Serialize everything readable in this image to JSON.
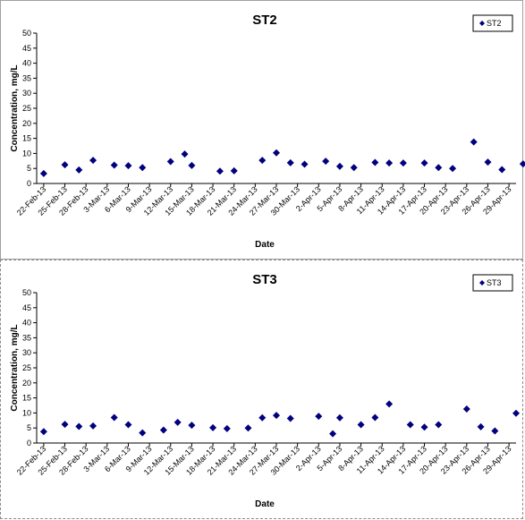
{
  "chart_data": [
    {
      "type": "scatter",
      "title": "ST2",
      "xlabel": "Date",
      "ylabel": "Concentration, mg/L",
      "ylim": [
        0,
        50
      ],
      "yticks": [
        0,
        5,
        10,
        15,
        20,
        25,
        30,
        35,
        40,
        45,
        50
      ],
      "x_tick_labels": [
        "22-Feb-13",
        "25-Feb-13",
        "28-Feb-13",
        "3-Mar-13",
        "6-Mar-13",
        "9-Mar-13",
        "12-Mar-13",
        "15-Mar-13",
        "18-Mar-13",
        "21-Mar-13",
        "24-Mar-13",
        "27-Mar-13",
        "30-Mar-13",
        "2-Apr-13",
        "5-Apr-13",
        "8-Apr-13",
        "11-Apr-13",
        "14-Apr-13",
        "17-Apr-13",
        "20-Apr-13",
        "23-Apr-13",
        "26-Apr-13",
        "29-Apr-13"
      ],
      "xlim": [
        "2013-02-21",
        "2013-04-30"
      ],
      "grid": false,
      "legend": "top-right",
      "marker_color": "#00007f",
      "series": [
        {
          "name": "ST2",
          "points": [
            {
              "x": "2013-02-22",
              "y": 3.3
            },
            {
              "x": "2013-02-25",
              "y": 6.2
            },
            {
              "x": "2013-02-27",
              "y": 4.5
            },
            {
              "x": "2013-03-01",
              "y": 7.7
            },
            {
              "x": "2013-03-04",
              "y": 6.1
            },
            {
              "x": "2013-03-06",
              "y": 5.9
            },
            {
              "x": "2013-03-08",
              "y": 5.3
            },
            {
              "x": "2013-03-12",
              "y": 7.3
            },
            {
              "x": "2013-03-14",
              "y": 9.8
            },
            {
              "x": "2013-03-15",
              "y": 6.0
            },
            {
              "x": "2013-03-19",
              "y": 4.1
            },
            {
              "x": "2013-03-21",
              "y": 4.2
            },
            {
              "x": "2013-03-25",
              "y": 7.7
            },
            {
              "x": "2013-03-27",
              "y": 10.2
            },
            {
              "x": "2013-03-29",
              "y": 6.9
            },
            {
              "x": "2013-03-31",
              "y": 6.4
            },
            {
              "x": "2013-04-03",
              "y": 7.4
            },
            {
              "x": "2013-04-05",
              "y": 5.7
            },
            {
              "x": "2013-04-07",
              "y": 5.3
            },
            {
              "x": "2013-04-10",
              "y": 7.0
            },
            {
              "x": "2013-04-12",
              "y": 6.8
            },
            {
              "x": "2013-04-14",
              "y": 6.8
            },
            {
              "x": "2013-04-17",
              "y": 6.8
            },
            {
              "x": "2013-04-19",
              "y": 5.3
            },
            {
              "x": "2013-04-21",
              "y": 5.0
            },
            {
              "x": "2013-04-24",
              "y": 13.8
            },
            {
              "x": "2013-04-26",
              "y": 7.1
            },
            {
              "x": "2013-04-28",
              "y": 4.6
            },
            {
              "x": "2013-05-01",
              "y": 6.5
            }
          ]
        }
      ]
    },
    {
      "type": "scatter",
      "title": "ST3",
      "xlabel": "Date",
      "ylabel": "Concentration, mg/L",
      "ylim": [
        0,
        50
      ],
      "yticks": [
        0,
        5,
        10,
        15,
        20,
        25,
        30,
        35,
        40,
        45,
        50
      ],
      "x_tick_labels": [
        "22-Feb-13",
        "25-Feb-13",
        "28-Feb-13",
        "3-Mar-13",
        "6-Mar-13",
        "9-Mar-13",
        "12-Mar-13",
        "15-Mar-13",
        "18-Mar-13",
        "21-Mar-13",
        "24-Mar-13",
        "27-Mar-13",
        "30-Mar-13",
        "2-Apr-13",
        "5-Apr-13",
        "8-Apr-13",
        "11-Apr-13",
        "14-Apr-13",
        "17-Apr-13",
        "20-Apr-13",
        "23-Apr-13",
        "26-Apr-13",
        "29-Apr-13"
      ],
      "xlim": [
        "2013-02-21",
        "2013-04-30"
      ],
      "grid": false,
      "legend": "top-right",
      "marker_color": "#00007f",
      "series": [
        {
          "name": "ST3",
          "points": [
            {
              "x": "2013-02-22",
              "y": 3.8
            },
            {
              "x": "2013-02-25",
              "y": 6.2
            },
            {
              "x": "2013-02-27",
              "y": 5.5
            },
            {
              "x": "2013-03-01",
              "y": 5.7
            },
            {
              "x": "2013-03-04",
              "y": 8.5
            },
            {
              "x": "2013-03-06",
              "y": 6.1
            },
            {
              "x": "2013-03-08",
              "y": 3.4
            },
            {
              "x": "2013-03-11",
              "y": 4.3
            },
            {
              "x": "2013-03-13",
              "y": 6.9
            },
            {
              "x": "2013-03-15",
              "y": 5.9
            },
            {
              "x": "2013-03-18",
              "y": 5.1
            },
            {
              "x": "2013-03-20",
              "y": 4.8
            },
            {
              "x": "2013-03-23",
              "y": 5.0
            },
            {
              "x": "2013-03-25",
              "y": 8.4
            },
            {
              "x": "2013-03-27",
              "y": 9.2
            },
            {
              "x": "2013-03-29",
              "y": 8.2
            },
            {
              "x": "2013-04-02",
              "y": 8.9
            },
            {
              "x": "2013-04-04",
              "y": 3.1
            },
            {
              "x": "2013-04-05",
              "y": 8.4
            },
            {
              "x": "2013-04-08",
              "y": 6.1
            },
            {
              "x": "2013-04-10",
              "y": 8.5
            },
            {
              "x": "2013-04-12",
              "y": 13.0
            },
            {
              "x": "2013-04-15",
              "y": 6.1
            },
            {
              "x": "2013-04-17",
              "y": 5.3
            },
            {
              "x": "2013-04-19",
              "y": 6.1
            },
            {
              "x": "2013-04-23",
              "y": 11.3
            },
            {
              "x": "2013-04-25",
              "y": 5.4
            },
            {
              "x": "2013-04-27",
              "y": 4.0
            },
            {
              "x": "2013-04-30",
              "y": 9.9
            }
          ]
        }
      ]
    }
  ]
}
